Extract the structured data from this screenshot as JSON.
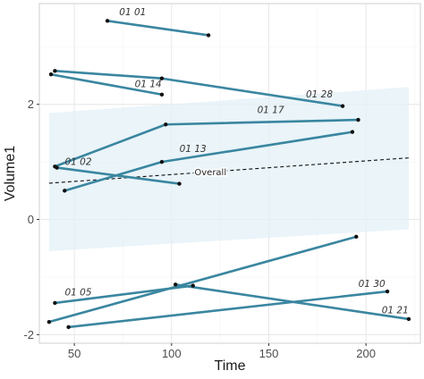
{
  "chart_data": {
    "type": "line",
    "xlabel": "Time",
    "ylabel": "Volume1",
    "xlim": [
      32,
      228
    ],
    "ylim": [
      -2.15,
      3.75
    ],
    "xticks": [
      50,
      100,
      150,
      200
    ],
    "yticks": [
      -2,
      0,
      2
    ],
    "grid": true,
    "colors": {
      "series_line": "#3a86a0",
      "point": "#111111",
      "ribbon": "#e3f0f7",
      "overall_line": "#111111",
      "grid_major": "#e6e6e6",
      "grid_minor": "#f4f4f4",
      "panel_border": "#cfcfcf"
    },
    "series": [
      {
        "name": "01_01",
        "x": [
          67,
          119
        ],
        "y": [
          3.45,
          3.2
        ]
      },
      {
        "name": "01_14",
        "x": [
          38,
          95
        ],
        "y": [
          2.52,
          2.17
        ]
      },
      {
        "name": "01_28",
        "x": [
          40,
          95,
          188
        ],
        "y": [
          2.58,
          2.45,
          1.97
        ]
      },
      {
        "name": "01_17",
        "x": [
          40,
          97,
          196
        ],
        "y": [
          0.92,
          1.65,
          1.73
        ]
      },
      {
        "name": "01_02",
        "x": [
          41,
          104
        ],
        "y": [
          0.9,
          0.62
        ]
      },
      {
        "name": "01_13",
        "x": [
          45,
          95,
          193
        ],
        "y": [
          0.5,
          1.0,
          1.52
        ]
      },
      {
        "name": "01_05",
        "x": [
          40,
          111
        ],
        "y": [
          -1.45,
          -1.15
        ]
      },
      {
        "name": "01_30",
        "x": [
          47,
          211
        ],
        "y": [
          -1.87,
          -1.25
        ]
      },
      {
        "name": "01_21",
        "x": [
          102,
          222
        ],
        "y": [
          -1.13,
          -1.73
        ]
      },
      {
        "name": "",
        "x": [
          37,
          195
        ],
        "y": [
          -1.78,
          -0.3
        ]
      }
    ],
    "overall": {
      "label": "Overall",
      "x": [
        37,
        222
      ],
      "y": [
        0.63,
        1.07
      ],
      "band_lower": [
        -0.55,
        -0.17
      ],
      "band_upper": [
        1.85,
        2.3
      ]
    }
  }
}
